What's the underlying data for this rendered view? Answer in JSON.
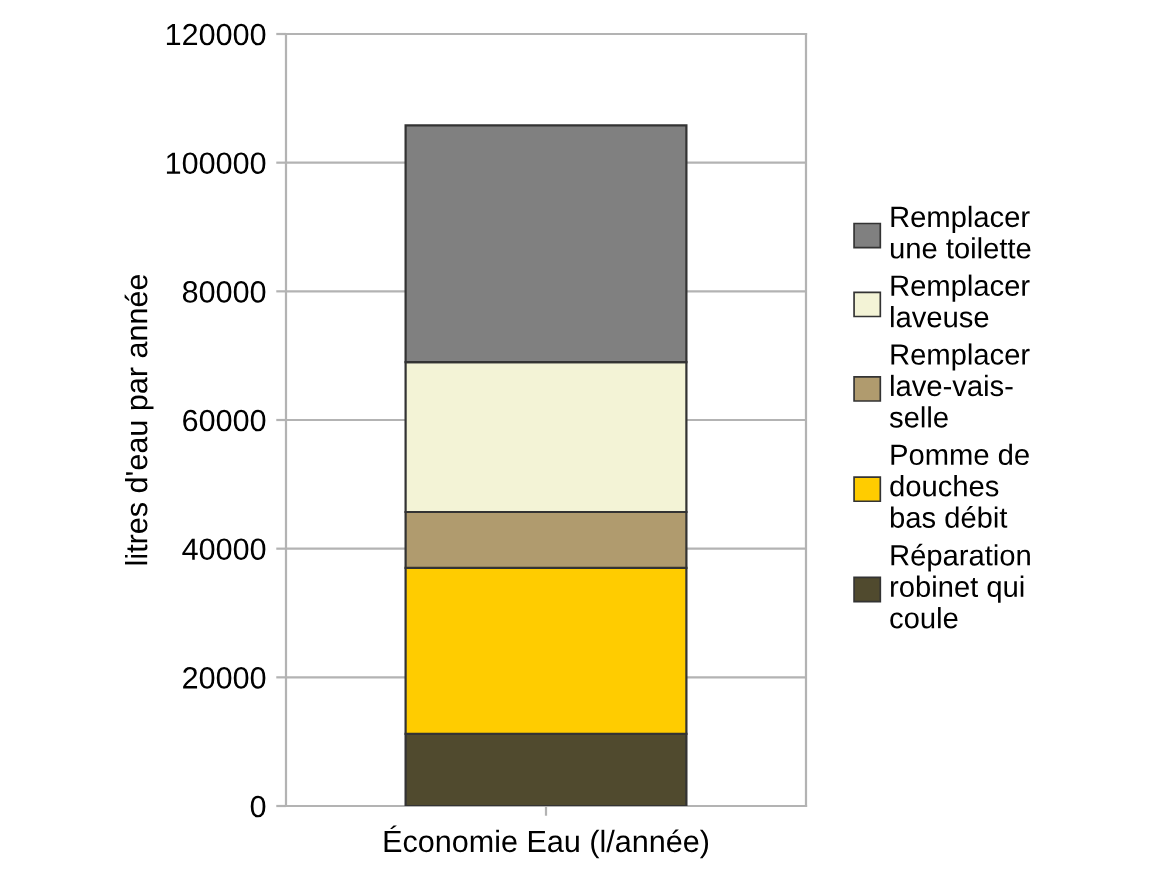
{
  "chart_data": {
    "type": "bar",
    "stacked": true,
    "categories": [
      "Économie Eau (l/année)"
    ],
    "ylabel": "litres d'eau par année",
    "ylim": [
      0,
      120000
    ],
    "yticks": [
      0,
      20000,
      40000,
      60000,
      80000,
      100000,
      120000
    ],
    "grid": "y",
    "legend": "right",
    "series": [
      {
        "name": "Réparation\nrobinet qui\ncoule",
        "color": "#504a2e",
        "values": [
          11200
        ]
      },
      {
        "name": "Pomme de\ndouches\nbas débit",
        "color": "#ffcc00",
        "values": [
          25800
        ]
      },
      {
        "name": "Remplacer\nlave-vais-\nselle",
        "color": "#b09b6e",
        "values": [
          8700
        ]
      },
      {
        "name": "Remplacer\nlaveuse",
        "color": "#f3f3d6",
        "values": [
          23300
        ]
      },
      {
        "name": "Remplacer\nune toilette",
        "color": "#808080",
        "values": [
          36800
        ]
      }
    ]
  }
}
